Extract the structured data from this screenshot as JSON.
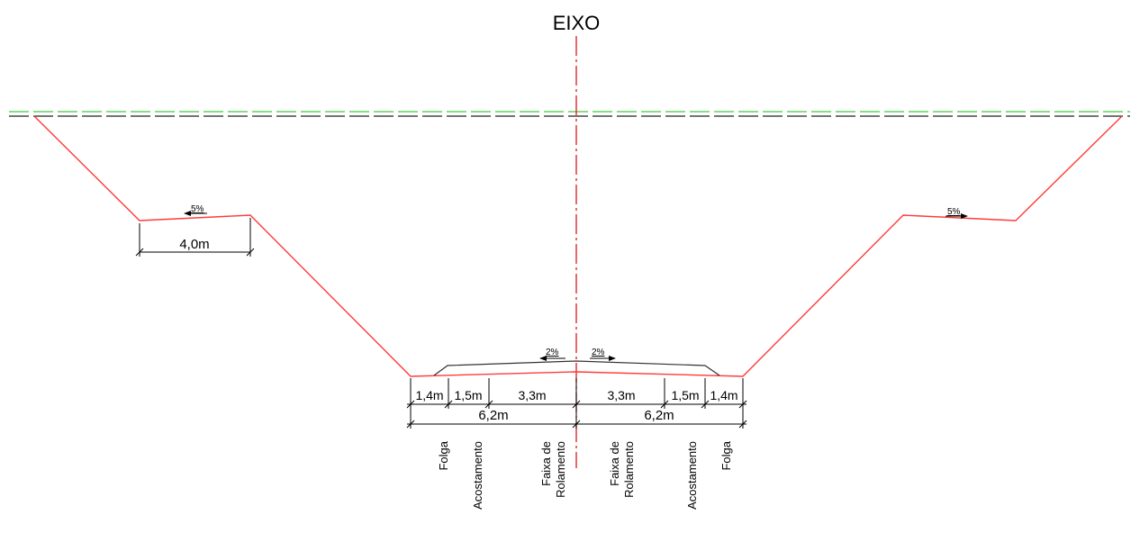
{
  "axis": {
    "label": "EIXO"
  },
  "colors": {
    "profile": "#ff3b3b",
    "axis_line": "#d8181a",
    "terrain_top": "#3ccc3c",
    "terrain_bottom": "#222222",
    "pavement": "#333333",
    "dimension": "#000000"
  },
  "berm": {
    "width_label": "4,0m",
    "left_slope": "5%",
    "right_slope": "5%"
  },
  "crossfall": {
    "left": "2%",
    "right": "2%"
  },
  "dimensions": {
    "left": [
      "1,4m",
      "1,5m",
      "3,3m"
    ],
    "right": [
      "3,3m",
      "1,5m",
      "1,4m"
    ],
    "left_total": "6,2m",
    "right_total": "6,2m"
  },
  "labels": {
    "left": [
      {
        "lines": [
          "Folga"
        ]
      },
      {
        "lines": [
          "Acostamento"
        ]
      },
      {
        "lines": [
          "Faixa de",
          "Rolamento"
        ]
      }
    ],
    "right": [
      {
        "lines": [
          "Faixa de",
          "Rolamento"
        ]
      },
      {
        "lines": [
          "Acostamento"
        ]
      },
      {
        "lines": [
          "Folga"
        ]
      }
    ]
  }
}
